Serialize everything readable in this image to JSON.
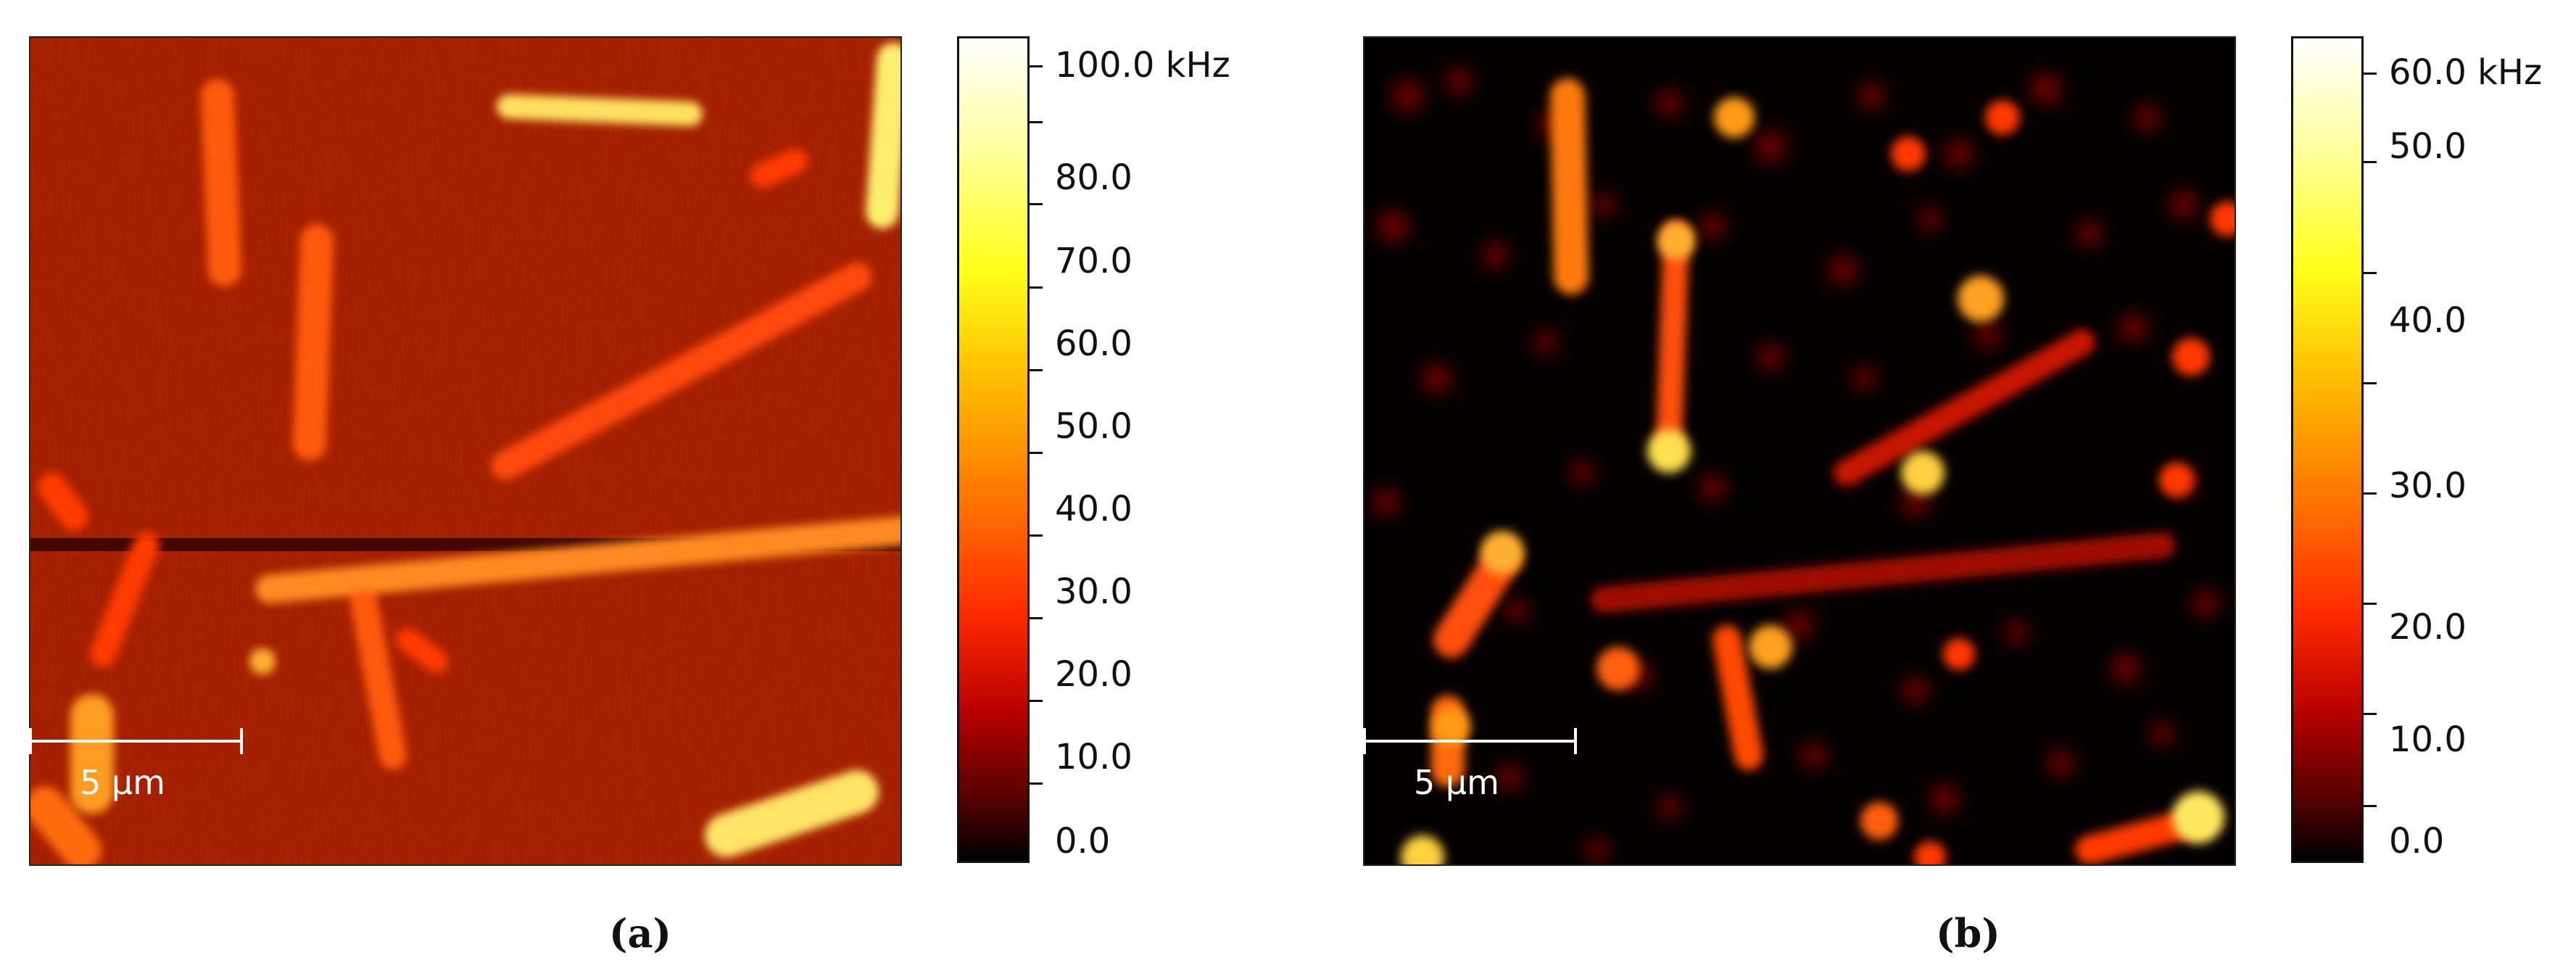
{
  "panels": [
    {
      "id": "a",
      "caption": "(a)",
      "scale_bar_label": "5 µm",
      "colorbar_ticks": [
        "100.0 kHz",
        "80.0",
        "70.0",
        "60.0",
        "50.0",
        "40.0",
        "30.0",
        "20.0",
        "10.0",
        "0.0"
      ],
      "background_color": "#9e1a00"
    },
    {
      "id": "b",
      "caption": "(b)",
      "scale_bar_label": "5 µm",
      "colorbar_ticks": [
        "60.0 kHz",
        "50.0",
        "40.0",
        "30.0",
        "20.0",
        "10.0",
        "0.0"
      ],
      "background_color": "#050000"
    }
  ],
  "colormap": [
    "#000000",
    "#5a0000",
    "#b80000",
    "#ff2a00",
    "#ff7a00",
    "#ffc400",
    "#ffff1a",
    "#ffff99",
    "#ffffff"
  ]
}
